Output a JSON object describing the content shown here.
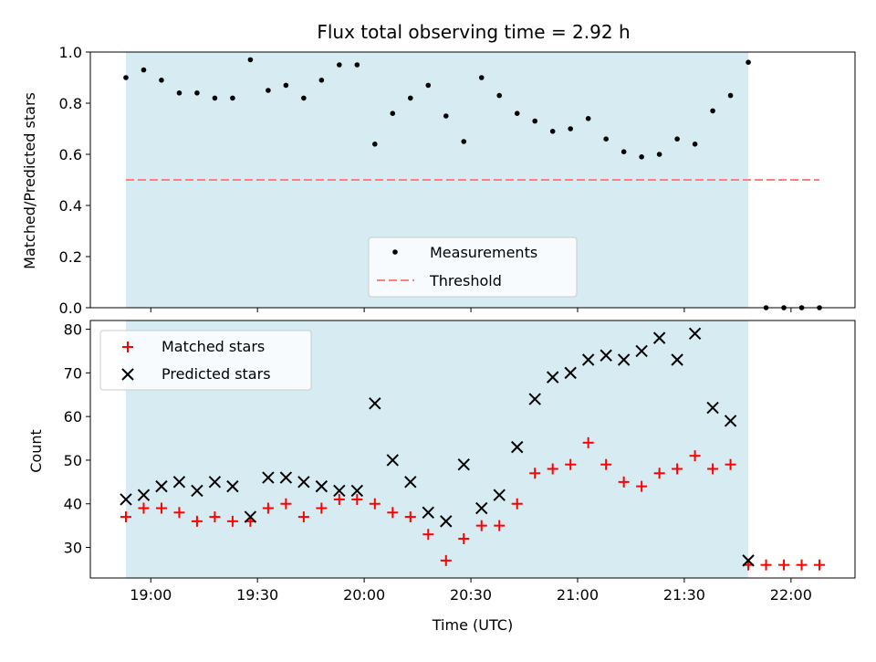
{
  "chart_data": {
    "title": "Flux total observing time = 2.92 h",
    "xlabel": "Time (UTC)",
    "shaded_region": {
      "start": "18:53",
      "end": "21:48",
      "color": "#add8e6"
    },
    "x_ticks": [
      "19:00",
      "19:30",
      "20:00",
      "20:30",
      "21:00",
      "21:30",
      "22:00"
    ],
    "xlim": [
      "18:43",
      "22:18"
    ],
    "panels": [
      {
        "type": "scatter",
        "ylabel": "Matched/Predicted stars",
        "ylim": [
          0.0,
          1.0
        ],
        "y_ticks": [
          "0.0",
          "0.2",
          "0.4",
          "0.6",
          "0.8",
          "1.0"
        ],
        "legend": {
          "location": "lower-center",
          "entries": [
            "Measurements",
            "Threshold"
          ]
        },
        "series": [
          {
            "name": "Measurements",
            "marker": "dot",
            "color": "#000000",
            "x": [
              "18:53",
              "18:58",
              "19:03",
              "19:08",
              "19:13",
              "19:18",
              "19:23",
              "19:28",
              "19:33",
              "19:38",
              "19:43",
              "19:48",
              "19:53",
              "19:58",
              "20:03",
              "20:08",
              "20:13",
              "20:18",
              "20:23",
              "20:28",
              "20:33",
              "20:38",
              "20:43",
              "20:48",
              "20:53",
              "20:58",
              "21:03",
              "21:08",
              "21:13",
              "21:18",
              "21:23",
              "21:28",
              "21:33",
              "21:38",
              "21:43",
              "21:48",
              "21:53",
              "21:58",
              "22:03",
              "22:08"
            ],
            "y": [
              0.9,
              0.93,
              0.89,
              0.84,
              0.84,
              0.82,
              0.82,
              0.97,
              0.85,
              0.87,
              0.82,
              0.89,
              0.95,
              0.95,
              0.64,
              0.76,
              0.82,
              0.87,
              0.75,
              0.65,
              0.9,
              0.83,
              0.76,
              0.73,
              0.69,
              0.7,
              0.74,
              0.66,
              0.61,
              0.59,
              0.6,
              0.66,
              0.64,
              0.77,
              0.83,
              0.96,
              0.0,
              0.0,
              0.0,
              0.0
            ]
          }
        ],
        "threshold": {
          "name": "Threshold",
          "value": 0.5,
          "x_start": "18:53",
          "x_end": "22:08",
          "color": "#ff7f7f"
        }
      },
      {
        "type": "scatter",
        "ylabel": "Count",
        "ylim": [
          23,
          82
        ],
        "y_ticks": [
          "30",
          "40",
          "50",
          "60",
          "70",
          "80"
        ],
        "legend": {
          "location": "upper-left",
          "entries": [
            "Matched stars",
            "Predicted stars"
          ]
        },
        "series": [
          {
            "name": "Matched stars",
            "marker": "plus",
            "color": "#ff0000",
            "x": [
              "18:53",
              "18:58",
              "19:03",
              "19:08",
              "19:13",
              "19:18",
              "19:23",
              "19:28",
              "19:33",
              "19:38",
              "19:43",
              "19:48",
              "19:53",
              "19:58",
              "20:03",
              "20:08",
              "20:13",
              "20:18",
              "20:23",
              "20:28",
              "20:33",
              "20:38",
              "20:43",
              "20:48",
              "20:53",
              "20:58",
              "21:03",
              "21:08",
              "21:13",
              "21:18",
              "21:23",
              "21:28",
              "21:33",
              "21:38",
              "21:43",
              "21:48",
              "21:53",
              "21:58",
              "22:03",
              "22:08"
            ],
            "y": [
              37,
              39,
              39,
              38,
              36,
              37,
              36,
              36,
              39,
              40,
              37,
              39,
              41,
              41,
              40,
              38,
              37,
              33,
              27,
              32,
              35,
              35,
              40,
              47,
              48,
              49,
              54,
              49,
              45,
              44,
              47,
              48,
              51,
              48,
              49,
              26,
              26,
              26,
              26,
              26
            ]
          },
          {
            "name": "Predicted stars",
            "marker": "x",
            "color": "#000000",
            "x": [
              "18:53",
              "18:58",
              "19:03",
              "19:08",
              "19:13",
              "19:18",
              "19:23",
              "19:28",
              "19:33",
              "19:38",
              "19:43",
              "19:48",
              "19:53",
              "19:58",
              "20:03",
              "20:08",
              "20:13",
              "20:18",
              "20:23",
              "20:28",
              "20:33",
              "20:38",
              "20:43",
              "20:48",
              "20:53",
              "20:58",
              "21:03",
              "21:08",
              "21:13",
              "21:18",
              "21:23",
              "21:28",
              "21:33",
              "21:38",
              "21:43",
              "21:48"
            ],
            "y": [
              41,
              42,
              44,
              45,
              43,
              45,
              44,
              37,
              46,
              46,
              45,
              44,
              43,
              43,
              63,
              50,
              45,
              38,
              36,
              49,
              39,
              42,
              53,
              64,
              69,
              70,
              73,
              74,
              73,
              75,
              78,
              73,
              79,
              62,
              59,
              27
            ]
          }
        ]
      }
    ]
  }
}
